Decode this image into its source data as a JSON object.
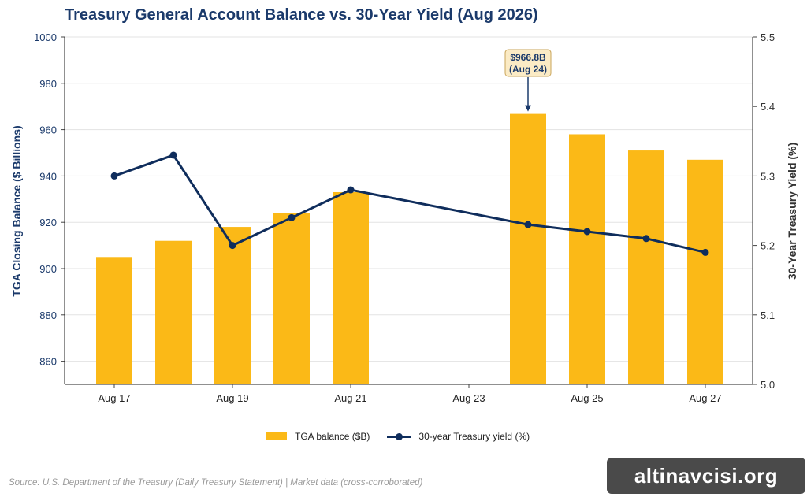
{
  "chart_data": {
    "type": "bar",
    "title": "Treasury General Account Balance vs. 30-Year Yield (Aug 2026)",
    "x": [
      "Aug 17",
      "Aug 18",
      "Aug 19",
      "Aug 20",
      "Aug 21",
      "Aug 22",
      "Aug 23",
      "Aug 24",
      "Aug 25",
      "Aug 26",
      "Aug 27"
    ],
    "x_tick_labels": [
      "Aug 17",
      "Aug 19",
      "Aug 21",
      "Aug 23",
      "Aug 25",
      "Aug 27"
    ],
    "ylabel": "TGA Closing Balance ($ Billions)",
    "ylim": [
      850,
      1000
    ],
    "y_ticks": [
      860,
      880,
      900,
      920,
      940,
      960,
      980,
      1000
    ],
    "y2label": "30-Year Treasury Yield (%)",
    "y2lim": [
      5.0,
      5.5
    ],
    "y2_ticks": [
      "5.0",
      "5.1",
      "5.2",
      "5.3",
      "5.4",
      "5.5"
    ],
    "series": [
      {
        "name": "TGA balance ($B)",
        "type": "bar",
        "axis": "left",
        "color": "#fbb917",
        "values": [
          905,
          912,
          918,
          924,
          933,
          null,
          null,
          966.8,
          958,
          951,
          947
        ]
      },
      {
        "name": "30-year Treasury yield (%)",
        "type": "line",
        "axis": "right",
        "color": "#0f2d5c",
        "values": [
          5.3,
          5.33,
          5.2,
          5.24,
          5.28,
          null,
          null,
          5.23,
          5.22,
          5.21,
          5.19
        ]
      }
    ],
    "annotation": {
      "text_line1": "$966.8B",
      "text_line2": "(Aug 24)",
      "x": "Aug 24",
      "y": 966.8
    },
    "grid": true,
    "legend": "bottom-center"
  },
  "source": "Source: U.S. Department of the Treasury (Daily Treasury Statement) | Market data (cross-corroborated)",
  "watermark": "altinavcisi.org"
}
